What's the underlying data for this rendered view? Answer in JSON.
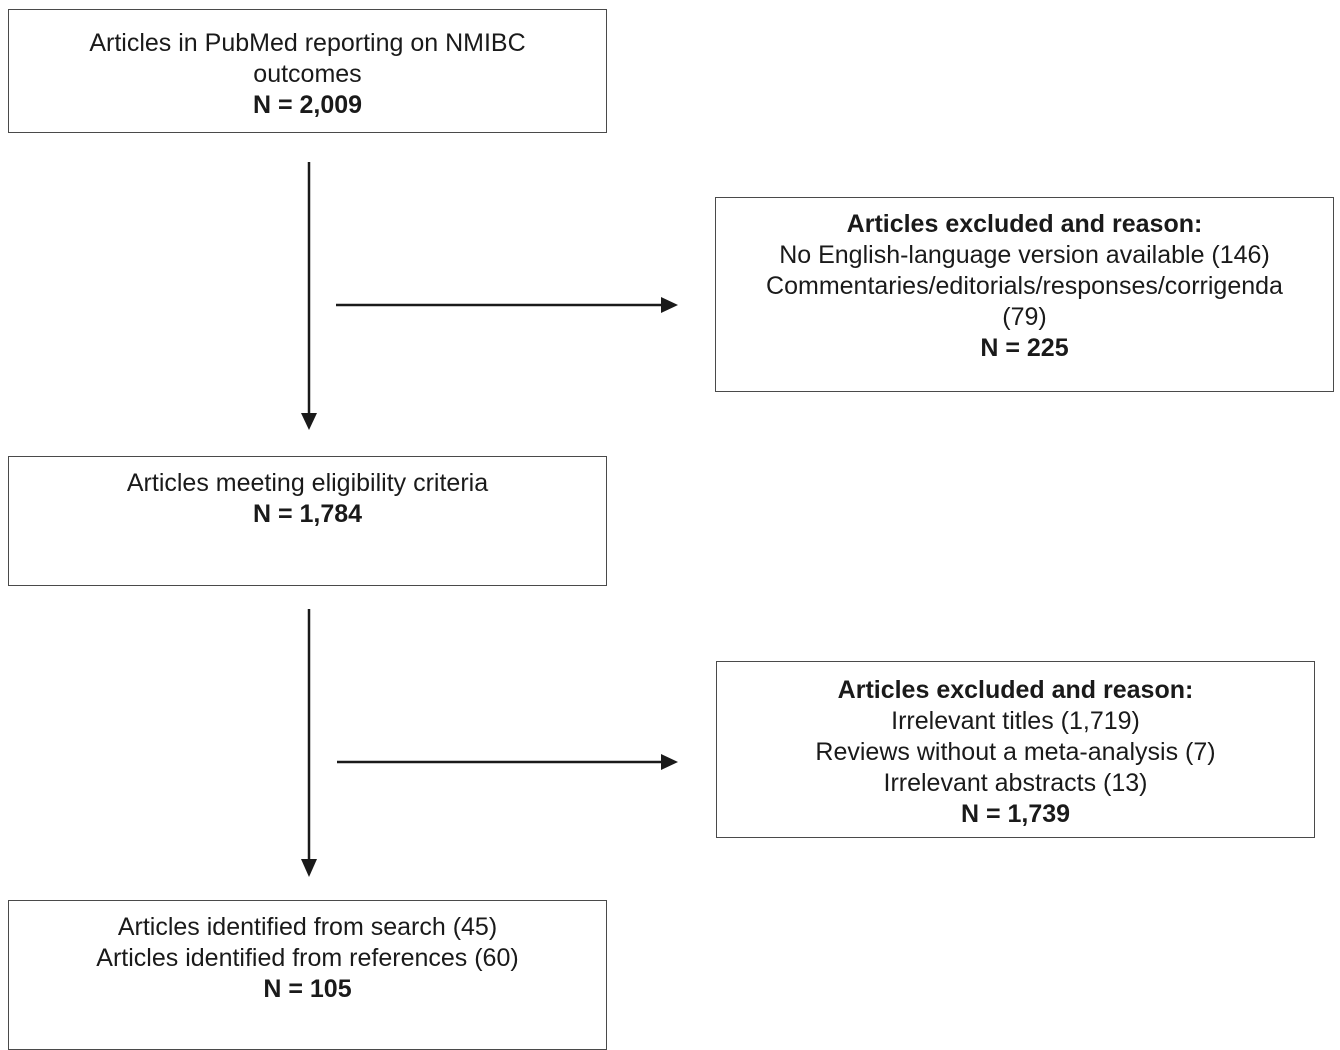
{
  "flow": {
    "identified": {
      "line1": "Articles in PubMed reporting on NMIBC",
      "line2": "outcomes",
      "count": "N = 2,009"
    },
    "excluded_first": {
      "heading": "Articles excluded and reason:",
      "line1": "No English-language version available (146)",
      "line2": "Commentaries/editorials/responses/corrigenda",
      "line3": "(79)",
      "count": "N = 225"
    },
    "eligible": {
      "line1": "Articles meeting eligibility criteria",
      "count": "N = 1,784"
    },
    "excluded_second": {
      "heading": "Articles excluded and reason:",
      "line1": "Irrelevant titles (1,719)",
      "line2": "Reviews without a meta-analysis (7)",
      "line3": "Irrelevant abstracts (13)",
      "count": "N = 1,739"
    },
    "included": {
      "line1": "Articles identified from search (45)",
      "line2": "Articles identified from references (60)",
      "count": "N = 105"
    }
  },
  "colors": {
    "box_border": "#4a4a4a",
    "arrow": "#1a1a1a",
    "text": "#1a1a1a"
  }
}
